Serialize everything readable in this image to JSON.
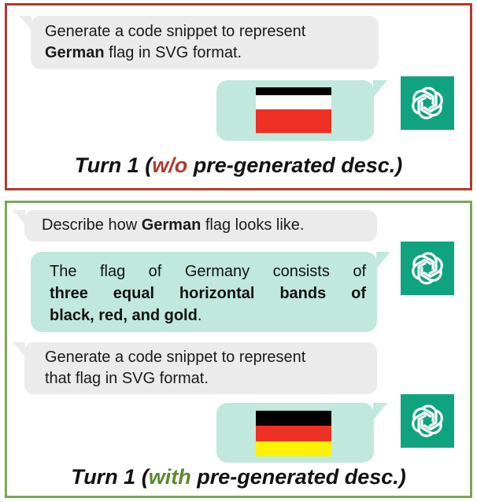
{
  "panel1": {
    "prompt": {
      "line1": "Generate a code snippet to represent",
      "bold": "German",
      "line2_rest": " flag in SVG format."
    },
    "flag_colors": [
      "#000000",
      "#ffffff",
      "#ee3124"
    ],
    "caption": {
      "prefix": "Turn 1 (",
      "highlight": "w/o",
      "suffix": " pre-generated desc.)",
      "highlight_color": "#b03a2e"
    },
    "border_color": "#b03a2e"
  },
  "panel2": {
    "prompt1": {
      "before": "Describe how ",
      "bold": "German",
      "after": " flag looks like."
    },
    "response": {
      "line1": "The flag of Germany consists of",
      "bold_line2": "three equal horizontal bands of",
      "bold_line3": "black, red, and gold",
      "end": "."
    },
    "prompt2": {
      "line1": "Generate a code snippet to represent",
      "line2": "that flag in SVG format."
    },
    "flag_colors": [
      "#000000",
      "#ee3124",
      "#fff200"
    ],
    "caption": {
      "prefix": "Turn 1 (",
      "highlight": "with",
      "suffix": " pre-generated desc.)",
      "highlight_color": "#5c8a2e"
    },
    "border_color": "#7aa65a"
  },
  "icons": {
    "assistant": "chatgpt-logo-icon",
    "accent": "#10a37f"
  }
}
